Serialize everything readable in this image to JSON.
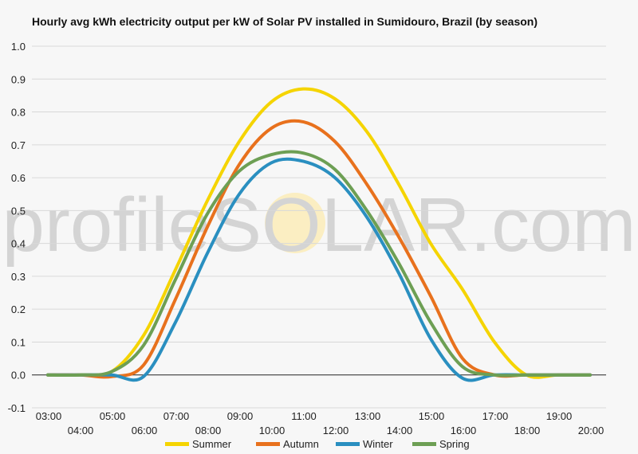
{
  "chart_data": {
    "type": "line",
    "title": "Hourly avg kWh electricity output per kW of Solar PV installed in Sumidouro, Brazil (by season)",
    "xlabel": "",
    "ylabel": "",
    "ylim": [
      -0.1,
      1.0
    ],
    "yticks": [
      "1.0",
      "0.9",
      "0.8",
      "0.7",
      "0.6",
      "0.5",
      "0.4",
      "0.3",
      "0.2",
      "0.1",
      "0.0",
      "-0.1"
    ],
    "x": [
      "03:00",
      "04:00",
      "05:00",
      "06:00",
      "07:00",
      "08:00",
      "09:00",
      "10:00",
      "11:00",
      "12:00",
      "13:00",
      "14:00",
      "15:00",
      "16:00",
      "17:00",
      "18:00",
      "19:00",
      "20:00"
    ],
    "grid": true,
    "legend": "bottom",
    "series": [
      {
        "name": "Summer",
        "color": "#f5d400",
        "values": [
          0,
          0,
          0.01,
          0.12,
          0.32,
          0.53,
          0.71,
          0.83,
          0.87,
          0.84,
          0.74,
          0.58,
          0.4,
          0.26,
          0.1,
          0.0,
          0,
          0
        ]
      },
      {
        "name": "Autumn",
        "color": "#e8711d",
        "values": [
          0,
          0,
          -0.005,
          0.03,
          0.23,
          0.45,
          0.64,
          0.75,
          0.77,
          0.71,
          0.58,
          0.42,
          0.24,
          0.05,
          0.0,
          0,
          0,
          0
        ]
      },
      {
        "name": "Winter",
        "color": "#2a8fc0",
        "values": [
          0,
          0,
          0,
          -0.005,
          0.16,
          0.37,
          0.55,
          0.645,
          0.65,
          0.6,
          0.48,
          0.31,
          0.11,
          -0.01,
          0,
          0,
          0,
          0
        ]
      },
      {
        "name": "Spring",
        "color": "#6d9f54",
        "values": [
          0,
          0,
          0.01,
          0.09,
          0.29,
          0.49,
          0.62,
          0.67,
          0.675,
          0.625,
          0.5,
          0.34,
          0.16,
          0.025,
          0,
          0,
          0,
          0
        ]
      }
    ]
  },
  "watermark": {
    "text": "profileSOLAR.com"
  },
  "colors": {
    "grid": "#d8d8d8",
    "zero_line": "#222222",
    "watermark_sun": "#fbeec2"
  }
}
